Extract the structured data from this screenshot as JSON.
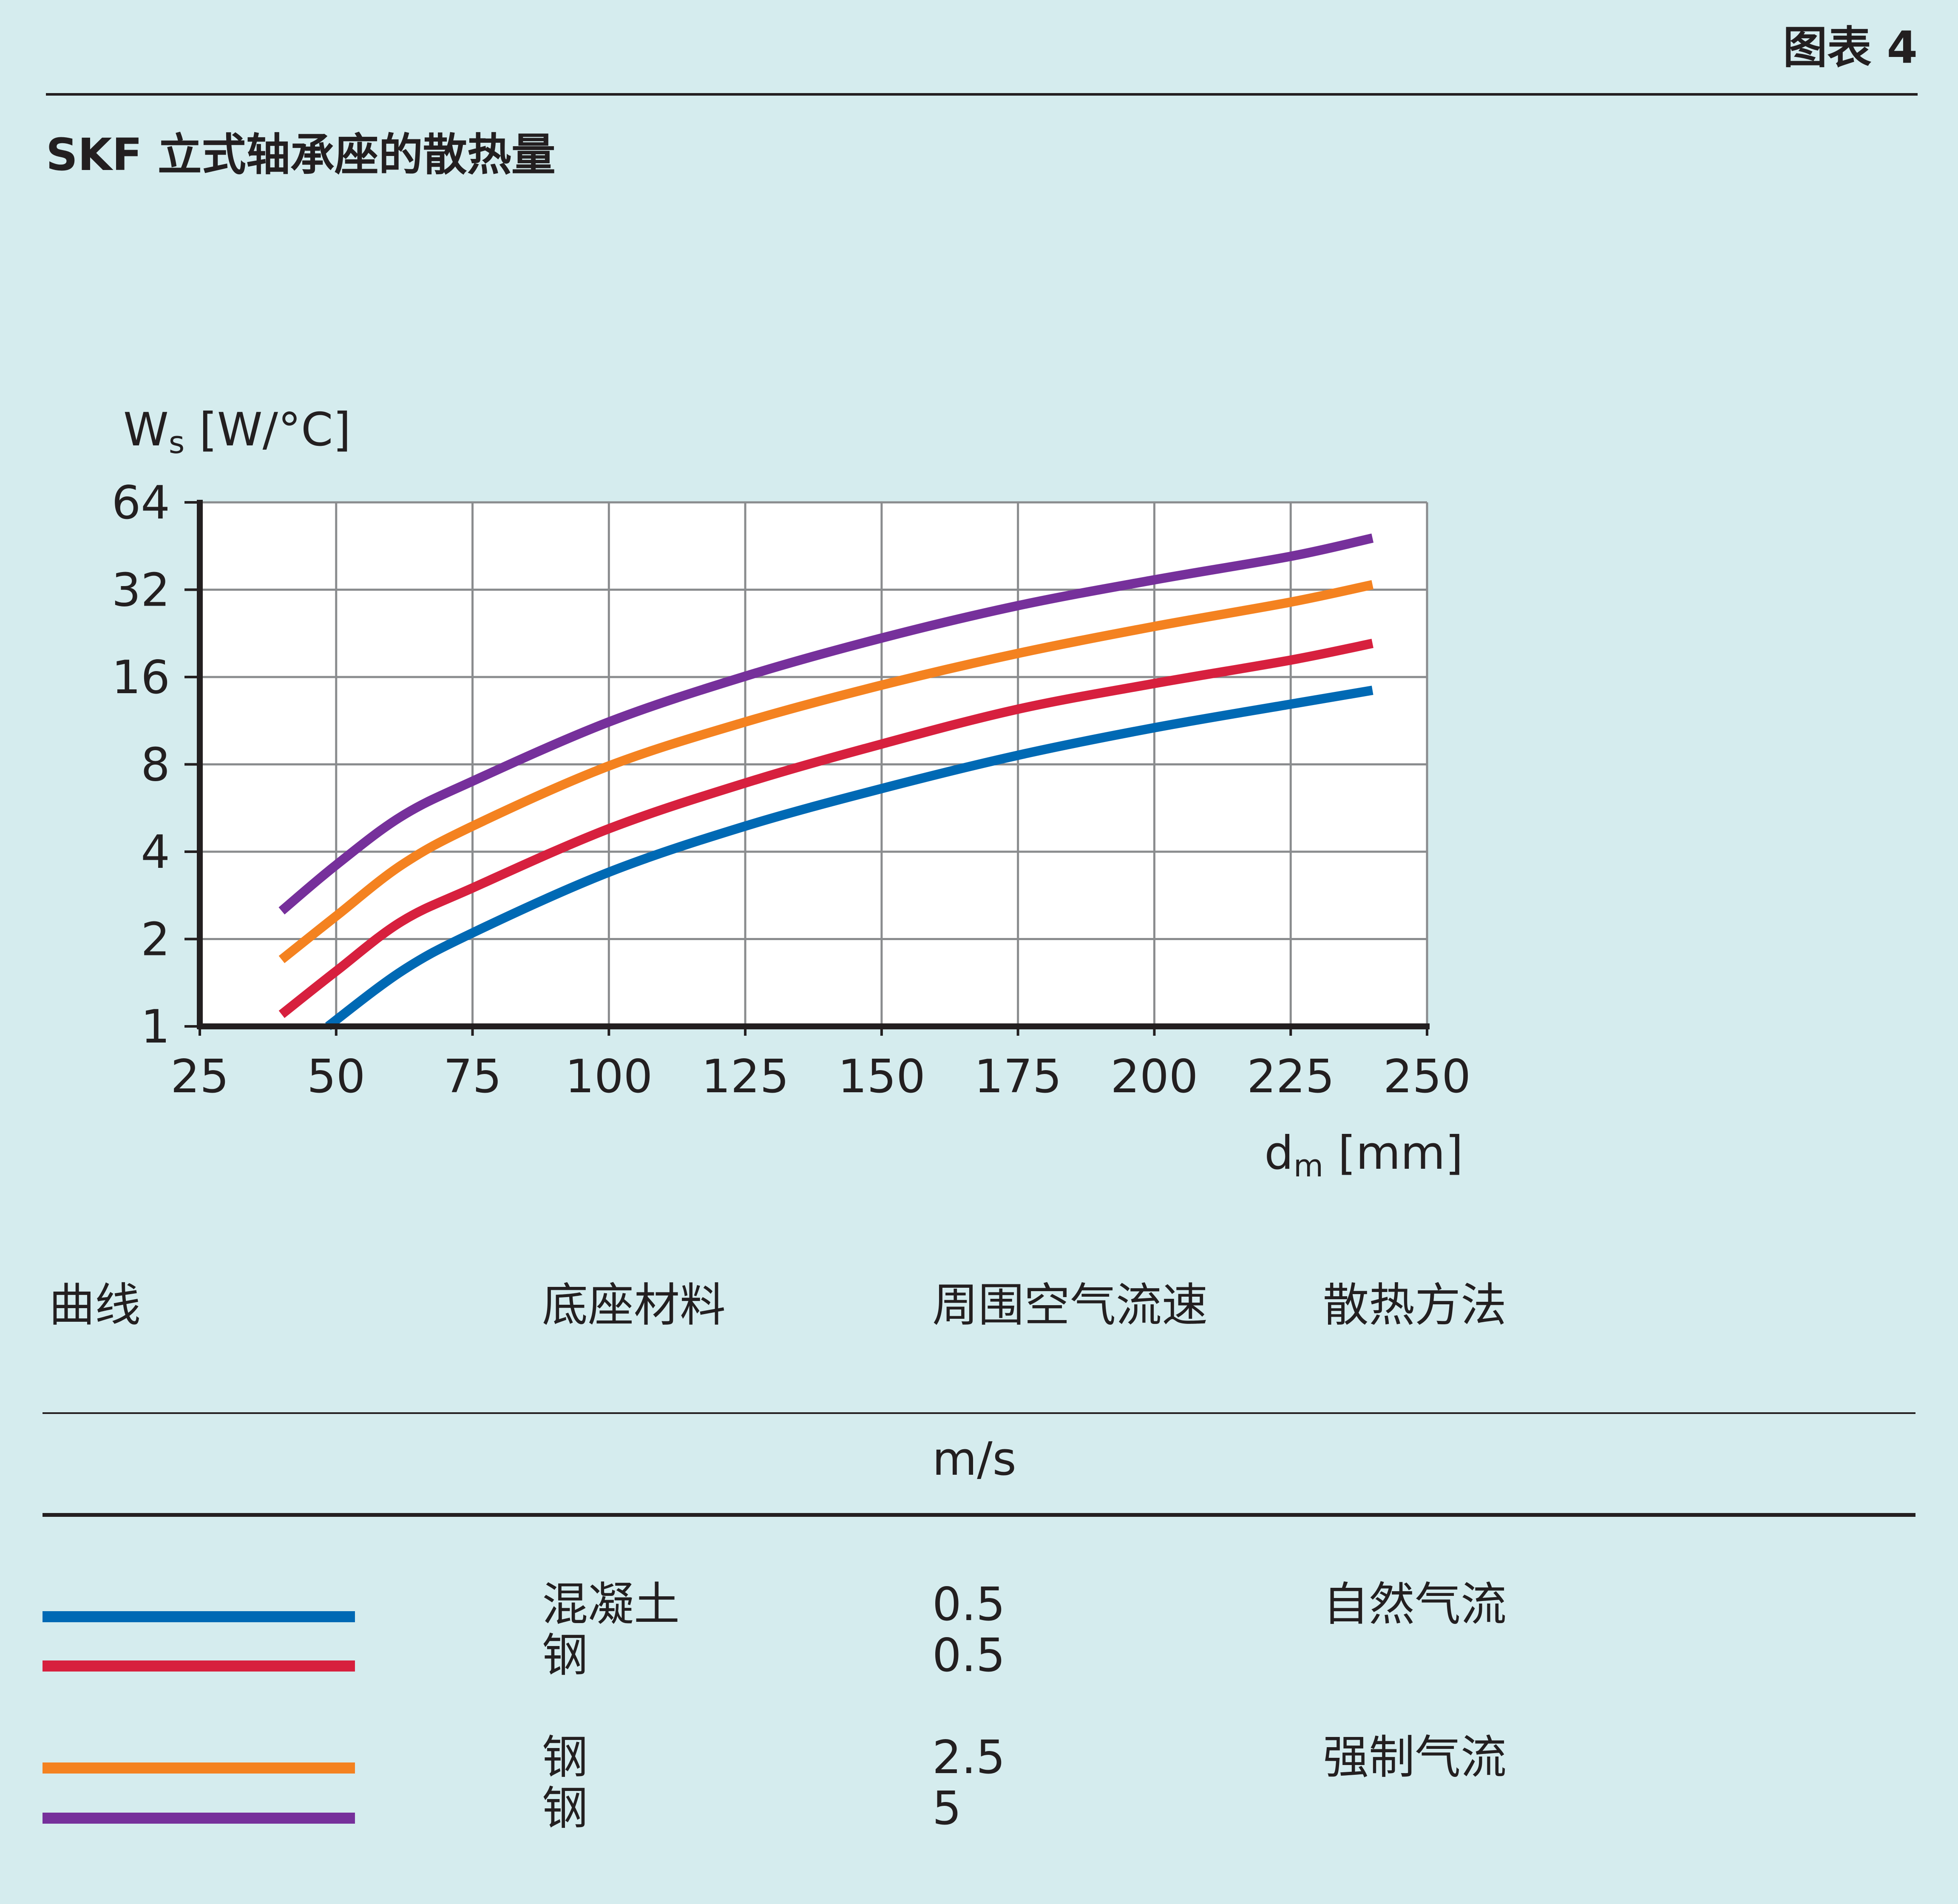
{
  "header": {
    "figure_label": "图表 4",
    "title": "SKF 立式轴承座的散热量"
  },
  "chart_data": {
    "type": "line",
    "ylabel_main": "W",
    "ylabel_sub": "s",
    "ylabel_unit": " [W/°C]",
    "xlabel_main": "d",
    "xlabel_sub": "m",
    "xlabel_unit": " [mm]",
    "y_scale": "log2",
    "ylim": [
      1,
      64
    ],
    "xlim": [
      25,
      250
    ],
    "grid": true,
    "x_ticks": [
      "25",
      "50",
      "75",
      "100",
      "125",
      "150",
      "175",
      "200",
      "225",
      "250"
    ],
    "y_ticks": [
      "1",
      "2",
      "4",
      "8",
      "16",
      "32",
      "64"
    ],
    "series": [
      {
        "color": "#0069b4",
        "x": [
          48.5,
          62,
          75,
          100,
          125,
          150,
          175,
          200,
          225,
          240
        ],
        "y": [
          1.0,
          1.55,
          2.1,
          3.4,
          4.9,
          6.6,
          8.6,
          10.7,
          12.9,
          14.4
        ]
      },
      {
        "color": "#d7203e",
        "x": [
          40,
          50,
          62,
          75,
          100,
          125,
          150,
          175,
          200,
          225,
          240
        ],
        "y": [
          1.1,
          1.55,
          2.3,
          3.0,
          4.8,
          6.9,
          9.4,
          12.4,
          15.2,
          18.3,
          20.9
        ]
      },
      {
        "color": "#f48220",
        "x": [
          40,
          50,
          62,
          75,
          100,
          125,
          150,
          175,
          200,
          225,
          240
        ],
        "y": [
          1.7,
          2.4,
          3.6,
          4.9,
          7.9,
          11.2,
          15.0,
          19.3,
          23.9,
          29.0,
          33.3
        ]
      },
      {
        "color": "#76309b",
        "x": [
          40,
          50,
          62,
          75,
          100,
          125,
          150,
          175,
          200,
          225,
          240
        ],
        "y": [
          2.5,
          3.6,
          5.3,
          7.0,
          11.2,
          16.1,
          21.8,
          28.2,
          34.6,
          41.7,
          48.2
        ]
      }
    ]
  },
  "legend_table": {
    "headers": [
      "曲线",
      "底座材料",
      "周围空气流速",
      "散热方法"
    ],
    "unit": "m/s",
    "rows": [
      {
        "material": "混凝土",
        "speed": "0.5",
        "method": "自然气流"
      },
      {
        "material": "钢",
        "speed": "0.5",
        "method": ""
      },
      {
        "material": "钢",
        "speed": "2.5",
        "method": "强制气流"
      },
      {
        "material": "钢",
        "speed": "5",
        "method": ""
      }
    ]
  }
}
